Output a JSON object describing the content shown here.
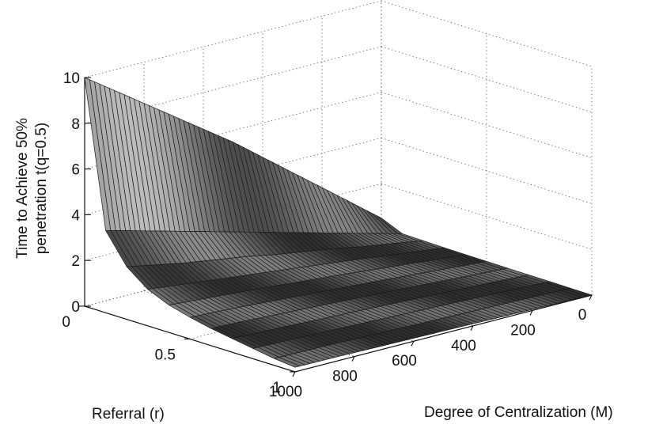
{
  "chart_data": {
    "type": "surface",
    "zlabel_lines": [
      "Time to Achieve 50%",
      "penetration t(q=0.5)"
    ],
    "ylabel": "Referral (r)",
    "xlabel": "Degree of Centralization (M)",
    "x_ticks": [
      "0",
      "200",
      "400",
      "600",
      "800",
      "1000"
    ],
    "y_ticks": [
      "0",
      "0.5",
      "1"
    ],
    "z_ticks": [
      "0",
      "2",
      "4",
      "6",
      "8",
      "10"
    ],
    "xlim": [
      0,
      1000
    ],
    "ylim": [
      0,
      1
    ],
    "zlim": [
      0,
      10
    ],
    "grid": true,
    "colormap": "gray",
    "x_values": [
      0,
      100,
      200,
      300,
      400,
      500,
      600,
      700,
      800,
      900,
      1000
    ],
    "y_values": [
      0,
      0.1,
      0.2,
      0.3,
      0.4,
      0.5,
      0.6,
      0.7,
      0.8,
      0.9,
      1.0
    ],
    "z_rows": [
      [
        0.5,
        1.5,
        2.5,
        3.5,
        4.5,
        5.5,
        6.4,
        7.3,
        8.2,
        9.1,
        10.0
      ],
      [
        0.1,
        0.45,
        0.8,
        1.15,
        1.5,
        1.85,
        2.2,
        2.55,
        2.9,
        3.25,
        3.6
      ],
      [
        0.08,
        0.3,
        0.5,
        0.75,
        0.95,
        1.15,
        1.4,
        1.6,
        1.8,
        2.05,
        2.3
      ],
      [
        0.06,
        0.22,
        0.38,
        0.55,
        0.7,
        0.85,
        1.0,
        1.15,
        1.3,
        1.45,
        1.6
      ],
      [
        0.05,
        0.17,
        0.3,
        0.42,
        0.55,
        0.67,
        0.78,
        0.9,
        1.0,
        1.1,
        1.2
      ],
      [
        0.04,
        0.14,
        0.24,
        0.34,
        0.44,
        0.53,
        0.62,
        0.71,
        0.8,
        0.88,
        0.95
      ],
      [
        0.03,
        0.11,
        0.19,
        0.27,
        0.35,
        0.42,
        0.49,
        0.56,
        0.63,
        0.7,
        0.75
      ],
      [
        0.02,
        0.09,
        0.15,
        0.21,
        0.27,
        0.33,
        0.39,
        0.44,
        0.5,
        0.55,
        0.6
      ],
      [
        0.02,
        0.07,
        0.12,
        0.16,
        0.21,
        0.25,
        0.3,
        0.34,
        0.38,
        0.42,
        0.45
      ],
      [
        0.01,
        0.05,
        0.08,
        0.11,
        0.14,
        0.17,
        0.2,
        0.23,
        0.26,
        0.28,
        0.3
      ],
      [
        0.0,
        0.03,
        0.05,
        0.07,
        0.09,
        0.11,
        0.13,
        0.15,
        0.17,
        0.19,
        0.2
      ]
    ]
  }
}
